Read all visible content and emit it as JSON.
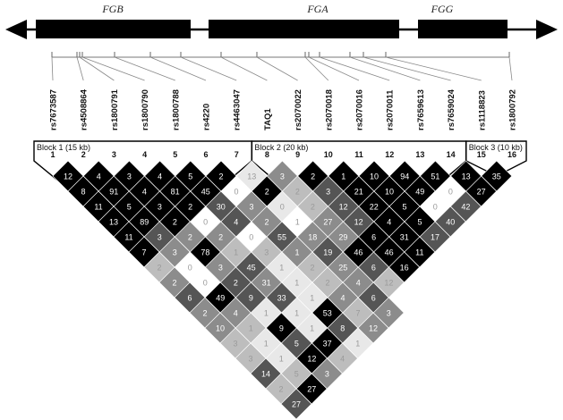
{
  "genes": [
    {
      "id": "fgb",
      "label": "FGB"
    },
    {
      "id": "fga",
      "label": "FGA"
    },
    {
      "id": "fgg",
      "label": "FGG"
    }
  ],
  "snps": [
    {
      "index": 1,
      "label": "rs7673587",
      "index_label": "1"
    },
    {
      "index": 2,
      "label": "rs4508864",
      "index_label": "2"
    },
    {
      "index": 3,
      "label": "rs1800791",
      "index_label": "3"
    },
    {
      "index": 4,
      "label": "rs1800790",
      "index_label": "4"
    },
    {
      "index": 5,
      "label": "rs1800788",
      "index_label": "5"
    },
    {
      "index": 6,
      "label": "rs4220",
      "index_label": "6"
    },
    {
      "index": 7,
      "label": "rs4463047",
      "index_label": "7"
    },
    {
      "index": 8,
      "label": "TAQ1",
      "index_label": "8"
    },
    {
      "index": 9,
      "label": "rs2070022",
      "index_label": "9"
    },
    {
      "index": 10,
      "label": "rs2070018",
      "index_label": "10"
    },
    {
      "index": 11,
      "label": "rs2070016",
      "index_label": "11"
    },
    {
      "index": 12,
      "label": "rs2070011",
      "index_label": "12"
    },
    {
      "index": 13,
      "label": "rs7659613",
      "index_label": "13"
    },
    {
      "index": 14,
      "label": "rs7659024",
      "index_label": "14"
    },
    {
      "index": 15,
      "label": "rs1118823",
      "index_label": "15"
    },
    {
      "index": 16,
      "label": "rs1800792",
      "index_label": "16"
    }
  ],
  "blocks": [
    {
      "label": "Block 1 (15 kb)",
      "first": 1,
      "last": 7
    },
    {
      "label": "Block 2 (20 kb)",
      "first": 8,
      "last": 14
    },
    {
      "label": "Block 3 (10 kb)",
      "first": 15,
      "last": 16
    }
  ],
  "ld_matrix": {
    "rows": [
      [
        12,
        4,
        3,
        4,
        5,
        2,
        13,
        3,
        2,
        1,
        10,
        94,
        51,
        13,
        35
      ],
      [
        8,
        91,
        4,
        81,
        45,
        0,
        2,
        2,
        3,
        21,
        10,
        49,
        0,
        27
      ],
      [
        11,
        5,
        3,
        2,
        30,
        3,
        0,
        2,
        12,
        22,
        5,
        0,
        42
      ],
      [
        13,
        89,
        2,
        0,
        4,
        2,
        1,
        27,
        12,
        4,
        5,
        40
      ],
      [
        11,
        3,
        2,
        2,
        0,
        55,
        18,
        29,
        6,
        31,
        17
      ],
      [
        7,
        3,
        78,
        1,
        3,
        1,
        19,
        46,
        46,
        11
      ],
      [
        2,
        0,
        3,
        45,
        1,
        2,
        25,
        6,
        16
      ],
      [
        2,
        0,
        2,
        31,
        1,
        2,
        4,
        12
      ],
      [
        6,
        49,
        9,
        33,
        1,
        4,
        6
      ],
      [
        2,
        4,
        1,
        1,
        53,
        7,
        3
      ],
      [
        10,
        1,
        9,
        1,
        8,
        12
      ],
      [
        3,
        1,
        5,
        37,
        1
      ],
      [
        3,
        1,
        12,
        4
      ],
      [
        14,
        5,
        3
      ],
      [
        2,
        27
      ],
      [
        27
      ]
    ],
    "shades": [
      [
        5,
        5,
        5,
        5,
        5,
        5,
        1,
        3,
        5,
        5,
        5,
        5,
        5,
        5,
        5
      ],
      [
        5,
        5,
        5,
        5,
        5,
        0,
        5,
        2,
        4,
        5,
        5,
        5,
        0,
        5
      ],
      [
        5,
        5,
        5,
        5,
        4,
        3,
        1,
        2,
        4,
        5,
        5,
        0,
        4
      ],
      [
        5,
        5,
        5,
        0,
        4,
        3,
        0,
        3,
        4,
        5,
        5,
        4
      ],
      [
        5,
        4,
        3,
        3,
        0,
        4,
        3,
        3,
        5,
        5,
        4
      ],
      [
        5,
        3,
        5,
        2,
        2,
        3,
        4,
        5,
        5,
        5
      ],
      [
        2,
        0,
        3,
        4,
        1,
        2,
        3,
        4,
        5
      ],
      [
        3,
        0,
        4,
        3,
        1,
        2,
        3,
        2
      ],
      [
        4,
        5,
        4,
        4,
        1,
        3,
        4
      ],
      [
        3,
        3,
        1,
        1,
        5,
        2,
        3
      ],
      [
        3,
        2,
        5,
        1,
        4,
        3
      ],
      [
        2,
        1,
        4,
        5,
        1
      ],
      [
        2,
        1,
        5,
        2
      ],
      [
        4,
        2,
        3
      ],
      [
        2,
        5
      ],
      [
        4
      ]
    ]
  },
  "colors": {
    "gene_bar": "#000000",
    "arrow": "#000000",
    "shade_scale": [
      "#ffffff",
      "#e8e8e8",
      "#bdbdbd",
      "#8c8c8c",
      "#555555",
      "#000000"
    ],
    "text_on_dark": "#ffffff",
    "text_on_light": "#9a9a9a"
  }
}
